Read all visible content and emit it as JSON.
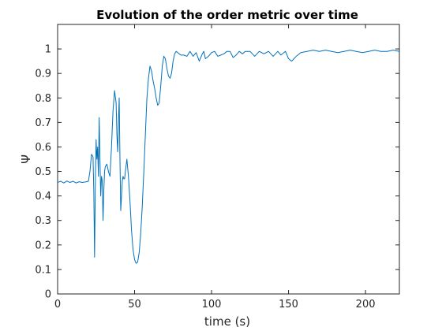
{
  "chart_data": {
    "type": "line",
    "title": "Evolution of the order metric over time",
    "xlabel": "time (s)",
    "ylabel": "Ψ",
    "xlim": [
      0,
      222
    ],
    "ylim": [
      0,
      1.1
    ],
    "x_ticks": [
      0,
      50,
      100,
      150,
      200
    ],
    "x_tick_labels": [
      "0",
      "50",
      "100",
      "150",
      "200"
    ],
    "y_ticks": [
      0,
      0.1,
      0.2,
      0.3,
      0.4,
      0.5,
      0.6,
      0.7,
      0.8,
      0.9,
      1
    ],
    "y_tick_labels": [
      "0",
      "0.1",
      "0.2",
      "0.3",
      "0.4",
      "0.5",
      "0.6",
      "0.7",
      "0.8",
      "0.9",
      "1"
    ],
    "grid": false,
    "line_color": "#0072BD",
    "series": [
      {
        "x": [
          0,
          2,
          4,
          6,
          8,
          10,
          12,
          14,
          16,
          18,
          20,
          21,
          22,
          23,
          23.5,
          24,
          24.5,
          25,
          25.5,
          26,
          26.5,
          27,
          27.5,
          28,
          28.5,
          29,
          29.5,
          30,
          30.5,
          31,
          32,
          33,
          34,
          35,
          36,
          37,
          38,
          38.5,
          39,
          39.5,
          40,
          40.5,
          41,
          41.5,
          42,
          42.5,
          43,
          43.5,
          44,
          45,
          46,
          47,
          48,
          49,
          50,
          51,
          52,
          53,
          54,
          55,
          56,
          57,
          58,
          59,
          60,
          61,
          62,
          63,
          64,
          65,
          66,
          67,
          68,
          69,
          70,
          71,
          72,
          73,
          74,
          75,
          76,
          77,
          78,
          79,
          80,
          82,
          84,
          86,
          88,
          90,
          92,
          94,
          95,
          96,
          98,
          100,
          102,
          104,
          106,
          108,
          110,
          112,
          114,
          116,
          118,
          120,
          122,
          125,
          128,
          131,
          134,
          137,
          140,
          143,
          145,
          147,
          148,
          150,
          152,
          155,
          158,
          162,
          166,
          170,
          174,
          178,
          182,
          186,
          190,
          194,
          198,
          202,
          206,
          210,
          214,
          218,
          222
        ],
        "y": [
          0.455,
          0.46,
          0.453,
          0.461,
          0.455,
          0.46,
          0.453,
          0.458,
          0.455,
          0.457,
          0.46,
          0.5,
          0.57,
          0.56,
          0.42,
          0.15,
          0.45,
          0.63,
          0.55,
          0.6,
          0.48,
          0.72,
          0.55,
          0.4,
          0.48,
          0.46,
          0.3,
          0.42,
          0.5,
          0.52,
          0.53,
          0.5,
          0.48,
          0.6,
          0.75,
          0.83,
          0.78,
          0.65,
          0.58,
          0.7,
          0.8,
          0.55,
          0.34,
          0.4,
          0.46,
          0.48,
          0.47,
          0.47,
          0.5,
          0.55,
          0.48,
          0.38,
          0.26,
          0.18,
          0.14,
          0.125,
          0.13,
          0.17,
          0.25,
          0.36,
          0.5,
          0.65,
          0.8,
          0.88,
          0.93,
          0.91,
          0.87,
          0.84,
          0.8,
          0.77,
          0.78,
          0.85,
          0.93,
          0.97,
          0.96,
          0.92,
          0.89,
          0.88,
          0.9,
          0.95,
          0.98,
          0.99,
          0.985,
          0.98,
          0.975,
          0.975,
          0.97,
          0.99,
          0.97,
          0.985,
          0.95,
          0.98,
          0.99,
          0.96,
          0.97,
          0.985,
          0.99,
          0.97,
          0.975,
          0.98,
          0.99,
          0.99,
          0.965,
          0.975,
          0.99,
          0.98,
          0.99,
          0.99,
          0.97,
          0.99,
          0.98,
          0.99,
          0.97,
          0.99,
          0.975,
          0.985,
          0.99,
          0.96,
          0.95,
          0.97,
          0.985,
          0.99,
          0.995,
          0.99,
          0.995,
          0.99,
          0.985,
          0.99,
          0.995,
          0.99,
          0.985,
          0.99,
          0.995,
          0.99,
          0.99,
          0.995,
          0.99
        ]
      }
    ]
  }
}
